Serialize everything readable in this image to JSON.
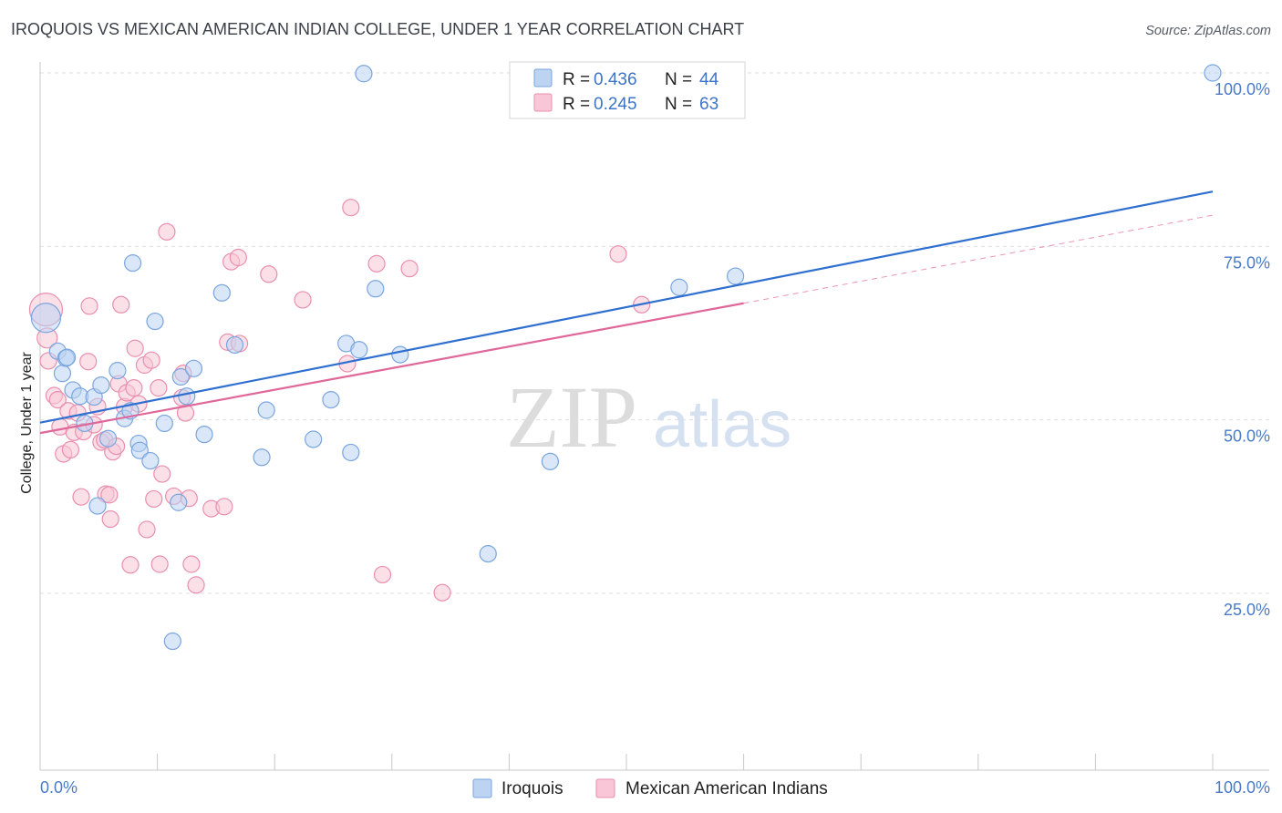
{
  "header": {
    "title": "IROQUOIS VS MEXICAN AMERICAN INDIAN COLLEGE, UNDER 1 YEAR CORRELATION CHART",
    "source": "Source: ZipAtlas.com"
  },
  "watermark": {
    "zip": "ZIP",
    "atlas": "atlas"
  },
  "colors": {
    "iroquois_fill": "#bcd3f2",
    "iroquois_stroke": "#7aa5de",
    "iroquois_line": "#2f6fd0",
    "mexican_fill": "#f8c6d6",
    "mexican_stroke": "#e98fae",
    "mexican_line": "#e0679a",
    "tick_label": "#4a7bc8",
    "grid": "#dedede"
  },
  "stats_legend": {
    "rows": [
      {
        "r_label": "R = ",
        "r_value": "0.436",
        "n_label": "N = ",
        "n_value": "44"
      },
      {
        "r_label": "R = ",
        "r_value": "0.245",
        "n_label": "N = ",
        "n_value": "63"
      }
    ]
  },
  "chart_data": {
    "type": "scatter",
    "title": "IROQUOIS VS MEXICAN AMERICAN INDIAN COLLEGE, UNDER 1 YEAR CORRELATION CHART",
    "xlabel": "",
    "ylabel": "College, Under 1 year",
    "xlim": [
      0,
      100
    ],
    "ylim": [
      0,
      102
    ],
    "x_tick_labels": [
      "0.0%",
      "100.0%"
    ],
    "y_ticks": [
      25,
      50,
      75,
      100
    ],
    "y_tick_labels": [
      "25.0%",
      "50.0%",
      "75.0%",
      "100.0%"
    ],
    "grid": "horizontal dashed",
    "legend_placement": "top-center and bottom",
    "series": [
      {
        "name": "Iroquois",
        "R": 0.436,
        "N": 44,
        "trend": {
          "x": [
            0,
            100
          ],
          "y": [
            49.6,
            82.9
          ],
          "style": "solid"
        },
        "points": [
          [
            0.5,
            64.7,
            16
          ],
          [
            1.5,
            59.9,
            9
          ],
          [
            1.9,
            56.7,
            9
          ],
          [
            2.2,
            58.9,
            9
          ],
          [
            2.8,
            54.3,
            9
          ],
          [
            3.4,
            53.4,
            9
          ],
          [
            3.8,
            49.5,
            9
          ],
          [
            4.6,
            53.3,
            9
          ],
          [
            4.9,
            37.6,
            9
          ],
          [
            5.2,
            55.0,
            9
          ],
          [
            5.8,
            47.3,
            9
          ],
          [
            6.6,
            57.1,
            9
          ],
          [
            7.2,
            50.2,
            9
          ],
          [
            7.7,
            51.3,
            9
          ],
          [
            8.4,
            46.6,
            9
          ],
          [
            8.5,
            45.6,
            9
          ],
          [
            9.4,
            44.1,
            9
          ],
          [
            9.8,
            64.2,
            9
          ],
          [
            10.6,
            49.5,
            9
          ],
          [
            11.3,
            18.1,
            9
          ],
          [
            11.8,
            38.1,
            9
          ],
          [
            12.0,
            56.2,
            9
          ],
          [
            12.5,
            53.4,
            9
          ],
          [
            13.1,
            57.4,
            9
          ],
          [
            14.0,
            47.9,
            9
          ],
          [
            15.5,
            68.3,
            9
          ],
          [
            16.6,
            60.8,
            9
          ],
          [
            18.9,
            44.6,
            9
          ],
          [
            19.3,
            51.4,
            9
          ],
          [
            23.3,
            47.2,
            9
          ],
          [
            24.8,
            52.9,
            9
          ],
          [
            26.1,
            61.0,
            9
          ],
          [
            26.5,
            45.3,
            9
          ],
          [
            27.2,
            60.1,
            9
          ],
          [
            27.6,
            99.9,
            9
          ],
          [
            28.6,
            68.9,
            9
          ],
          [
            30.7,
            59.4,
            9
          ],
          [
            38.2,
            30.7,
            9
          ],
          [
            43.5,
            44.0,
            9
          ],
          [
            54.5,
            69.1,
            9
          ],
          [
            59.3,
            70.7,
            9
          ],
          [
            100.0,
            100.0,
            9
          ],
          [
            7.9,
            72.6,
            9
          ],
          [
            2.3,
            59.0,
            9
          ]
        ]
      },
      {
        "name": "Mexican American Indians",
        "R": 0.245,
        "N": 63,
        "trend": {
          "x": [
            0,
            60,
            100
          ],
          "y": [
            48.1,
            66.8,
            79.5
          ],
          "style": "solid then dashed"
        },
        "points": [
          [
            0.5,
            65.9,
            18
          ],
          [
            0.6,
            61.8,
            11
          ],
          [
            0.7,
            58.5,
            9
          ],
          [
            1.2,
            53.5,
            9
          ],
          [
            1.5,
            52.9,
            9
          ],
          [
            1.7,
            49.0,
            9
          ],
          [
            2.0,
            45.1,
            9
          ],
          [
            2.4,
            51.3,
            9
          ],
          [
            2.6,
            45.7,
            9
          ],
          [
            2.9,
            48.2,
            9
          ],
          [
            3.2,
            51.0,
            9
          ],
          [
            3.5,
            38.9,
            9
          ],
          [
            3.7,
            48.3,
            9
          ],
          [
            4.1,
            58.4,
            9
          ],
          [
            4.2,
            66.4,
            9
          ],
          [
            4.6,
            49.3,
            9
          ],
          [
            4.9,
            51.9,
            9
          ],
          [
            5.2,
            46.8,
            9
          ],
          [
            5.5,
            47.1,
            9
          ],
          [
            5.6,
            39.3,
            9
          ],
          [
            5.9,
            39.2,
            9
          ],
          [
            6.0,
            35.7,
            9
          ],
          [
            6.2,
            45.4,
            9
          ],
          [
            6.5,
            46.2,
            9
          ],
          [
            6.7,
            55.2,
            9
          ],
          [
            6.9,
            66.6,
            9
          ],
          [
            7.2,
            51.9,
            9
          ],
          [
            7.4,
            53.9,
            9
          ],
          [
            7.7,
            29.1,
            9
          ],
          [
            8.0,
            54.6,
            9
          ],
          [
            8.1,
            60.3,
            9
          ],
          [
            8.4,
            52.3,
            9
          ],
          [
            8.9,
            57.9,
            9
          ],
          [
            9.1,
            34.2,
            9
          ],
          [
            9.5,
            58.6,
            9
          ],
          [
            9.7,
            38.6,
            9
          ],
          [
            10.1,
            54.6,
            9
          ],
          [
            10.2,
            29.2,
            9
          ],
          [
            10.4,
            42.2,
            9
          ],
          [
            10.8,
            77.1,
            9
          ],
          [
            11.4,
            39.0,
            9
          ],
          [
            12.1,
            53.2,
            9
          ],
          [
            12.2,
            56.7,
            9
          ],
          [
            12.4,
            51.0,
            9
          ],
          [
            12.7,
            38.7,
            9
          ],
          [
            12.9,
            29.2,
            9
          ],
          [
            13.3,
            26.2,
            9
          ],
          [
            14.6,
            37.2,
            9
          ],
          [
            15.7,
            37.5,
            9
          ],
          [
            16.0,
            61.2,
            9
          ],
          [
            16.3,
            72.8,
            9
          ],
          [
            16.9,
            73.4,
            9
          ],
          [
            19.5,
            71.0,
            9
          ],
          [
            22.4,
            67.3,
            9
          ],
          [
            26.2,
            58.1,
            9
          ],
          [
            26.5,
            80.6,
            9
          ],
          [
            28.7,
            72.5,
            9
          ],
          [
            29.2,
            27.7,
            9
          ],
          [
            31.5,
            71.8,
            9
          ],
          [
            34.3,
            25.1,
            9
          ],
          [
            49.3,
            73.9,
            9
          ],
          [
            51.3,
            66.6,
            9
          ],
          [
            17.0,
            61.0,
            9
          ]
        ]
      }
    ]
  },
  "bottom_legend": {
    "items": [
      {
        "label": "Iroquois"
      },
      {
        "label": "Mexican American Indians"
      }
    ]
  }
}
